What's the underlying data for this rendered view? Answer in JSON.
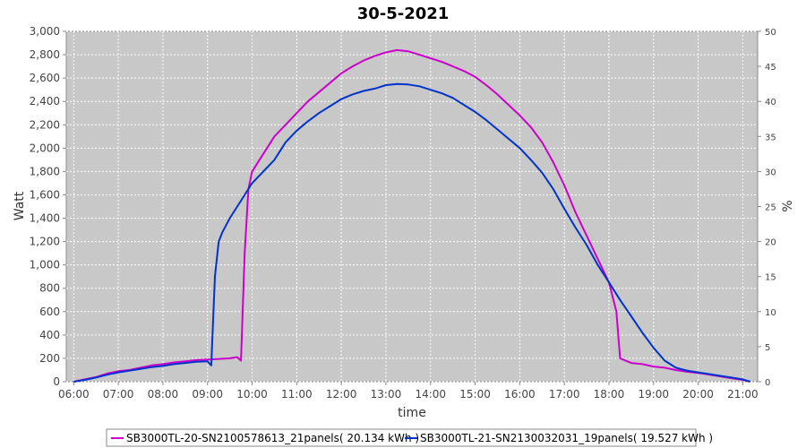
{
  "chart_data": {
    "type": "line",
    "title": "30-5-2021",
    "xlabel": "time",
    "ylabel": "Watt",
    "y2label": "%",
    "ylim": [
      0,
      3000
    ],
    "y2lim": [
      0,
      50
    ],
    "xlim": [
      "05:50",
      "21:20"
    ],
    "grid": true,
    "legend": "bottom",
    "plot_background": "#c8c8c8",
    "x_ticks": [
      "06:00",
      "07:00",
      "08:00",
      "09:00",
      "10:00",
      "11:00",
      "12:00",
      "13:00",
      "14:00",
      "15:00",
      "16:00",
      "17:00",
      "18:00",
      "19:00",
      "20:00",
      "21:00"
    ],
    "y_ticks": [
      "0",
      "200",
      "400",
      "600",
      "800",
      "1,000",
      "1,200",
      "1,400",
      "1,600",
      "1,800",
      "2,000",
      "2,200",
      "2,400",
      "2,600",
      "2,800",
      "3,000"
    ],
    "y2_ticks": [
      "0",
      "5",
      "10",
      "15",
      "20",
      "25",
      "30",
      "35",
      "40",
      "45",
      "50"
    ],
    "series": [
      {
        "name": "SB3000TL-20-SN2100578613_21panels( 20.134 kWh )",
        "color": "#cc00cc",
        "points": [
          [
            "06:00",
            0
          ],
          [
            "06:15",
            20
          ],
          [
            "06:30",
            40
          ],
          [
            "06:45",
            70
          ],
          [
            "07:00",
            90
          ],
          [
            "07:15",
            100
          ],
          [
            "07:30",
            120
          ],
          [
            "07:45",
            140
          ],
          [
            "08:00",
            150
          ],
          [
            "08:15",
            165
          ],
          [
            "08:30",
            175
          ],
          [
            "08:45",
            185
          ],
          [
            "09:00",
            190
          ],
          [
            "09:15",
            195
          ],
          [
            "09:30",
            200
          ],
          [
            "09:40",
            210
          ],
          [
            "09:45",
            180
          ],
          [
            "09:50",
            1100
          ],
          [
            "09:55",
            1650
          ],
          [
            "10:00",
            1800
          ],
          [
            "10:15",
            1950
          ],
          [
            "10:30",
            2100
          ],
          [
            "10:45",
            2200
          ],
          [
            "11:00",
            2300
          ],
          [
            "11:15",
            2400
          ],
          [
            "11:30",
            2480
          ],
          [
            "11:45",
            2560
          ],
          [
            "12:00",
            2640
          ],
          [
            "12:15",
            2700
          ],
          [
            "12:30",
            2750
          ],
          [
            "12:45",
            2790
          ],
          [
            "13:00",
            2820
          ],
          [
            "13:15",
            2840
          ],
          [
            "13:30",
            2830
          ],
          [
            "13:45",
            2800
          ],
          [
            "14:00",
            2770
          ],
          [
            "14:15",
            2740
          ],
          [
            "14:30",
            2700
          ],
          [
            "14:45",
            2660
          ],
          [
            "15:00",
            2610
          ],
          [
            "15:15",
            2540
          ],
          [
            "15:30",
            2460
          ],
          [
            "15:45",
            2370
          ],
          [
            "16:00",
            2280
          ],
          [
            "16:15",
            2180
          ],
          [
            "16:30",
            2050
          ],
          [
            "16:45",
            1880
          ],
          [
            "17:00",
            1680
          ],
          [
            "17:15",
            1450
          ],
          [
            "17:30",
            1250
          ],
          [
            "17:45",
            1050
          ],
          [
            "18:00",
            850
          ],
          [
            "18:10",
            600
          ],
          [
            "18:15",
            200
          ],
          [
            "18:30",
            160
          ],
          [
            "18:45",
            150
          ],
          [
            "19:00",
            130
          ],
          [
            "19:15",
            120
          ],
          [
            "19:30",
            100
          ],
          [
            "19:45",
            85
          ],
          [
            "20:00",
            75
          ],
          [
            "20:15",
            60
          ],
          [
            "20:30",
            45
          ],
          [
            "20:45",
            30
          ],
          [
            "21:00",
            15
          ],
          [
            "21:10",
            0
          ]
        ]
      },
      {
        "name": "SB3000TL-21-SN2130032031_19panels( 19.527 kWh )",
        "color": "#0033cc",
        "points": [
          [
            "06:00",
            0
          ],
          [
            "06:15",
            15
          ],
          [
            "06:30",
            35
          ],
          [
            "06:45",
            60
          ],
          [
            "07:00",
            80
          ],
          [
            "07:15",
            95
          ],
          [
            "07:30",
            110
          ],
          [
            "07:45",
            125
          ],
          [
            "08:00",
            135
          ],
          [
            "08:15",
            150
          ],
          [
            "08:30",
            160
          ],
          [
            "08:45",
            170
          ],
          [
            "09:00",
            175
          ],
          [
            "09:05",
            140
          ],
          [
            "09:10",
            900
          ],
          [
            "09:15",
            1200
          ],
          [
            "09:20",
            1280
          ],
          [
            "09:30",
            1400
          ],
          [
            "09:45",
            1550
          ],
          [
            "10:00",
            1700
          ],
          [
            "10:15",
            1800
          ],
          [
            "10:30",
            1900
          ],
          [
            "10:45",
            2050
          ],
          [
            "11:00",
            2150
          ],
          [
            "11:15",
            2230
          ],
          [
            "11:30",
            2300
          ],
          [
            "11:45",
            2360
          ],
          [
            "12:00",
            2420
          ],
          [
            "12:15",
            2460
          ],
          [
            "12:30",
            2490
          ],
          [
            "12:45",
            2510
          ],
          [
            "13:00",
            2540
          ],
          [
            "13:15",
            2550
          ],
          [
            "13:30",
            2545
          ],
          [
            "13:45",
            2530
          ],
          [
            "14:00",
            2500
          ],
          [
            "14:15",
            2470
          ],
          [
            "14:30",
            2430
          ],
          [
            "14:45",
            2370
          ],
          [
            "15:00",
            2310
          ],
          [
            "15:15",
            2240
          ],
          [
            "15:30",
            2160
          ],
          [
            "15:45",
            2080
          ],
          [
            "16:00",
            2000
          ],
          [
            "16:15",
            1900
          ],
          [
            "16:30",
            1790
          ],
          [
            "16:45",
            1650
          ],
          [
            "17:00",
            1480
          ],
          [
            "17:15",
            1320
          ],
          [
            "17:30",
            1170
          ],
          [
            "17:45",
            1000
          ],
          [
            "18:00",
            850
          ],
          [
            "18:15",
            700
          ],
          [
            "18:30",
            560
          ],
          [
            "18:45",
            420
          ],
          [
            "19:00",
            290
          ],
          [
            "19:15",
            180
          ],
          [
            "19:30",
            120
          ],
          [
            "19:45",
            95
          ],
          [
            "20:00",
            80
          ],
          [
            "20:15",
            65
          ],
          [
            "20:30",
            50
          ],
          [
            "20:45",
            35
          ],
          [
            "21:00",
            20
          ],
          [
            "21:10",
            0
          ]
        ]
      }
    ]
  }
}
